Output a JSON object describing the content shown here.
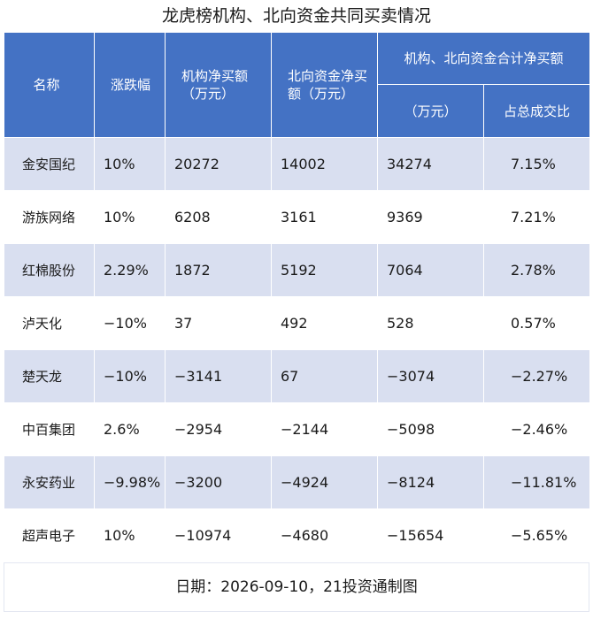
{
  "title": "龙虎榜机构、北向资金共同买卖情况",
  "headers": {
    "name": "名称",
    "change": "涨跌幅",
    "institution_net": "机构净买额（万元）",
    "northbound_net": "北向资金净买额（万元）",
    "combined_group": "机构、北向资金合计净买额",
    "combined_amount": "（万元）",
    "share_of_turnover": "占总成交比"
  },
  "rows": [
    {
      "name": "金安国纪",
      "change": "10%",
      "institution_net": "20272",
      "northbound_net": "14002",
      "combined": "34274",
      "share": "7.15%"
    },
    {
      "name": "游族网络",
      "change": "10%",
      "institution_net": "6208",
      "northbound_net": "3161",
      "combined": "9369",
      "share": "7.21%"
    },
    {
      "name": "红棉股份",
      "change": "2.29%",
      "institution_net": "1872",
      "northbound_net": "5192",
      "combined": "7064",
      "share": "2.78%"
    },
    {
      "name": "泸天化",
      "change": "−10%",
      "institution_net": "37",
      "northbound_net": "492",
      "combined": "528",
      "share": "0.57%"
    },
    {
      "name": "楚天龙",
      "change": "−10%",
      "institution_net": "−3141",
      "northbound_net": "67",
      "combined": "−3074",
      "share": "−2.27%"
    },
    {
      "name": "中百集团",
      "change": "2.6%",
      "institution_net": "−2954",
      "northbound_net": "−2144",
      "combined": "−5098",
      "share": "−2.46%"
    },
    {
      "name": "永安药业",
      "change": "−9.98%",
      "institution_net": "−3200",
      "northbound_net": "−4924",
      "combined": "−8124",
      "share": "−11.81%"
    },
    {
      "name": "超声电子",
      "change": "10%",
      "institution_net": "−10974",
      "northbound_net": "−4680",
      "combined": "−15654",
      "share": "−5.65%"
    }
  ],
  "footer": "日期：2026-09-10，21投资通制图",
  "colors": {
    "header_bg": "#4472c4",
    "band_bg": "#d9dff0"
  }
}
